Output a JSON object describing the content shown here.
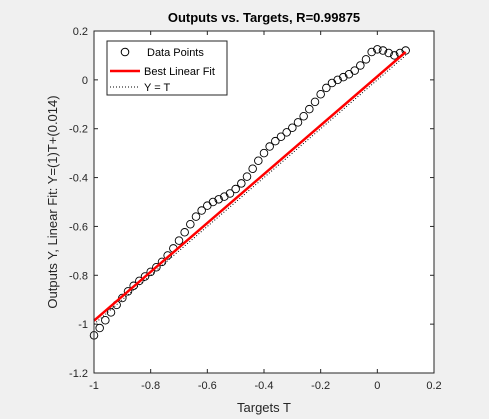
{
  "chart_data": {
    "type": "scatter",
    "title": "Outputs vs. Targets, R=0.99875",
    "xlabel": "Targets T",
    "ylabel": "Outputs Y,  Linear Fit: Y=(1)T+(0.014)",
    "xlim": [
      -1,
      0.2
    ],
    "ylim": [
      -1.2,
      0.2
    ],
    "xticks": [
      -1,
      -0.8,
      -0.6,
      -0.4,
      -0.2,
      0,
      0.2
    ],
    "yticks": [
      0.2,
      0,
      -0.2,
      -0.4,
      -0.6,
      -0.8,
      -1,
      -1.2
    ],
    "xtick_labels": [
      "-1",
      "-0.8",
      "-0.6",
      "-0.4",
      "-0.2",
      "0",
      "0.2"
    ],
    "ytick_labels": [
      "0.2",
      "0",
      "-0.2",
      "-0.4",
      "-0.6",
      "-0.8",
      "-1",
      "-1.2"
    ],
    "grid": false,
    "legend_position": "top-left",
    "legend": [
      "Data Points",
      "Best Linear Fit",
      "Y = T"
    ],
    "series": [
      {
        "name": "Data Points",
        "type": "scatter",
        "marker": "open-circle",
        "color": "#000000",
        "x": [
          -1,
          -0.98,
          -0.96,
          -0.94,
          -0.92,
          -0.9,
          -0.88,
          -0.86,
          -0.84,
          -0.82,
          -0.8,
          -0.78,
          -0.76,
          -0.74,
          -0.72,
          -0.7,
          -0.68,
          -0.66,
          -0.64,
          -0.62,
          -0.6,
          -0.58,
          -0.56,
          -0.54,
          -0.52,
          -0.5,
          -0.48,
          -0.46,
          -0.44,
          -0.42,
          -0.4,
          -0.38,
          -0.36,
          -0.34,
          -0.32,
          -0.3,
          -0.28,
          -0.26,
          -0.24,
          -0.22,
          -0.2,
          -0.18,
          -0.16,
          -0.14,
          -0.12,
          -0.1,
          -0.08,
          -0.06,
          -0.04,
          -0.02,
          0,
          0.02,
          0.04,
          0.06,
          0.08,
          0.1
        ],
        "y": [
          -1.046,
          -1.016,
          -0.984,
          -0.952,
          -0.921,
          -0.893,
          -0.866,
          -0.843,
          -0.823,
          -0.805,
          -0.786,
          -0.767,
          -0.745,
          -0.719,
          -0.69,
          -0.658,
          -0.624,
          -0.591,
          -0.56,
          -0.535,
          -0.515,
          -0.5,
          -0.489,
          -0.478,
          -0.465,
          -0.447,
          -0.424,
          -0.396,
          -0.364,
          -0.331,
          -0.3,
          -0.273,
          -0.251,
          -0.233,
          -0.215,
          -0.196,
          -0.174,
          -0.149,
          -0.12,
          -0.09,
          -0.059,
          -0.033,
          -0.013,
          0.0,
          0.011,
          0.023,
          0.038,
          0.059,
          0.084,
          0.114,
          0.125,
          0.12,
          0.11,
          0.1,
          0.11,
          0.12
        ]
      },
      {
        "name": "Best Linear Fit",
        "type": "line",
        "color": "#ff0000",
        "x": [
          -1,
          0.1
        ],
        "y": [
          -0.986,
          0.114
        ]
      },
      {
        "name": "Y = T",
        "type": "line",
        "style": "dotted",
        "color": "#000000",
        "x": [
          -1,
          0.1
        ],
        "y": [
          -1,
          0.1
        ]
      }
    ]
  }
}
